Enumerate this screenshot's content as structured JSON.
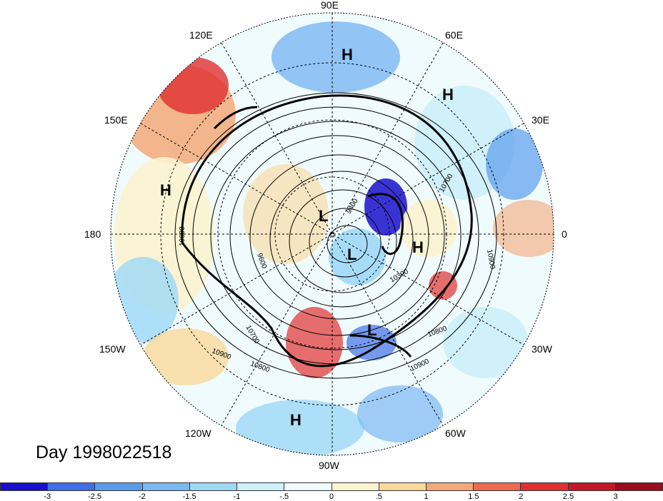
{
  "map": {
    "title": "Day 1998022518",
    "longitude_labels": [
      "90E",
      "60E",
      "30E",
      "0",
      "30W",
      "60W",
      "90W",
      "120W",
      "150W",
      "180",
      "150E",
      "120E"
    ],
    "pressure_centers": [
      "H",
      "H",
      "H",
      "H",
      "H",
      "L",
      "L",
      "L"
    ],
    "contour_labels": [
      "10900",
      "10900",
      "10900",
      "10800",
      "10800",
      "10700",
      "10700",
      "10600",
      "10300",
      "9600",
      "9400"
    ]
  },
  "colorbar": {
    "labels": [
      "-3",
      "-2.5",
      "-2",
      "-1.5",
      "-1",
      "-.5",
      "0",
      ".5",
      "1",
      "1.5",
      "2",
      "2.5",
      "3"
    ],
    "colors": [
      "#1a0fcd",
      "#3f6fe6",
      "#5a9cec",
      "#7ab8f2",
      "#9ed8f7",
      "#cdf0f9",
      "#f0fbfd",
      "#fcf3cf",
      "#f9d99a",
      "#f3a877",
      "#ee6a50",
      "#e0302f",
      "#c41727",
      "#9c0d1c"
    ]
  }
}
